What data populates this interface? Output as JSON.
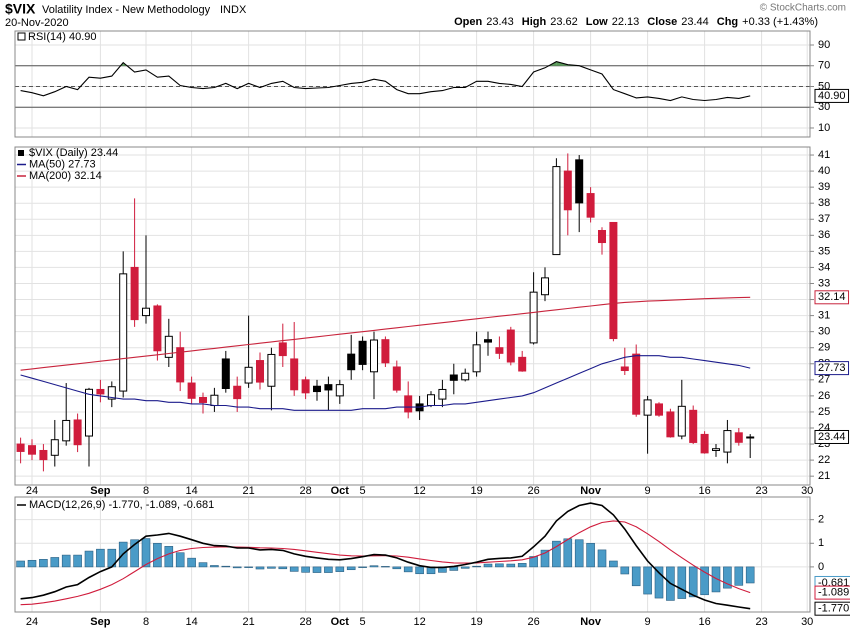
{
  "header": {
    "symbol": "$VIX",
    "name": "Volatility Index - New Methodology",
    "exchange": "INDX",
    "date": "20-Nov-2020",
    "quote": [
      {
        "label": "Open",
        "value": "23.43"
      },
      {
        "label": "High",
        "value": "23.62"
      },
      {
        "label": "Low",
        "value": "22.13"
      },
      {
        "label": "Close",
        "value": "23.44"
      },
      {
        "label": "Chg",
        "value": "+0.33 (+1.43%)"
      }
    ],
    "copyright": "© StockCharts.com"
  },
  "chart_data": [
    {
      "type": "line",
      "ylim": [
        1.3,
        103.5
      ],
      "yticks": [
        10,
        30,
        50,
        70,
        90
      ],
      "overbought": 70,
      "oversold": 30,
      "midline": 50,
      "fill_color": "#5a9a5a",
      "grid": true,
      "series": [
        {
          "name": "RSI(14) 40.90",
          "last_label": "40.90",
          "color": "#000000",
          "values": [
            46,
            44,
            41,
            45,
            50,
            47,
            59,
            58,
            60,
            73,
            64,
            66,
            59,
            60,
            51,
            49,
            48,
            49,
            53,
            48,
            53,
            49,
            53,
            55,
            49,
            48,
            48.5,
            49,
            51,
            53,
            54,
            57,
            55,
            47,
            43,
            43,
            45,
            46,
            49,
            49,
            55,
            55,
            53,
            52,
            50,
            64,
            68,
            74,
            71,
            70,
            66,
            62,
            47,
            43,
            39,
            40,
            38.5,
            36.5,
            40,
            37.5,
            36.5,
            37.5,
            39.5,
            38.5,
            40.9,
            null,
            null,
            null,
            null,
            null
          ]
        }
      ]
    },
    {
      "type": "candlestick",
      "ylim": [
        20.45,
        41.5
      ],
      "yticks": [
        21,
        22,
        23,
        24,
        25,
        26,
        27,
        28,
        29,
        30,
        31,
        32,
        33,
        34,
        35,
        36,
        37,
        38,
        39,
        40,
        41
      ],
      "grid": true,
      "categories": [
        null,
        "24",
        null,
        null,
        null,
        null,
        null,
        "Sep",
        null,
        null,
        null,
        "8",
        null,
        null,
        null,
        "14",
        null,
        null,
        null,
        null,
        "21",
        null,
        null,
        null,
        null,
        "28",
        null,
        null,
        "Oct",
        null,
        "5",
        null,
        null,
        null,
        null,
        "12",
        null,
        null,
        null,
        null,
        "19",
        null,
        null,
        null,
        null,
        "26",
        null,
        null,
        null,
        null,
        "Nov",
        null,
        null,
        null,
        null,
        "9",
        null,
        null,
        null,
        null,
        "16",
        null,
        null,
        null,
        null,
        "23",
        null,
        null,
        null,
        "30"
      ],
      "series": [
        {
          "name": "$VIX (Daily) 23.44",
          "last_label": "23.44",
          "up_color": "#000000",
          "down_color": "#d01c3c",
          "open": [
            23.0,
            22.9,
            22.6,
            22.3,
            23.2,
            24.5,
            23.5,
            26.4,
            25.8,
            26.3,
            34.0,
            31.0,
            31.6,
            28.4,
            29.0,
            26.8,
            25.9,
            25.4,
            28.3,
            26.6,
            26.8,
            28.2,
            26.6,
            29.3,
            28.3,
            27.0,
            26.6,
            26.7,
            26.0,
            28.6,
            29.4,
            27.5,
            29.5,
            27.8,
            26.0,
            25.5,
            25.4,
            25.8,
            27.3,
            27.0,
            27.5,
            29.5,
            29.0,
            30.1,
            28.4,
            29.3,
            32.3,
            34.8,
            40.0,
            40.7,
            38.6,
            36.3,
            36.8,
            27.8,
            28.6,
            24.8,
            25.5,
            25.0,
            23.5,
            25.1,
            23.6,
            22.6,
            22.5,
            23.7,
            23.43,
            null,
            null,
            null,
            null,
            null
          ],
          "high": [
            23.4,
            23.3,
            23.0,
            24.5,
            26.8,
            24.9,
            26.5,
            27.0,
            26.9,
            35.0,
            38.3,
            36.0,
            31.7,
            30.8,
            30.0,
            27.2,
            26.2,
            26.5,
            28.8,
            27.2,
            31.0,
            28.7,
            29.0,
            30.5,
            30.6,
            27.2,
            27.0,
            27.2,
            27.0,
            29.8,
            29.7,
            30.0,
            29.7,
            28.2,
            26.9,
            26.0,
            26.3,
            27.0,
            28.0,
            27.7,
            30.0,
            30.0,
            29.7,
            30.3,
            28.8,
            33.7,
            34.0,
            40.8,
            41.1,
            41.0,
            39.0,
            36.5,
            36.8,
            29.0,
            29.2,
            26.0,
            25.6,
            25.2,
            27.0,
            25.4,
            23.8,
            23.0,
            24.5,
            24.0,
            23.62,
            null,
            null,
            null,
            null,
            null
          ],
          "low": [
            21.8,
            22.0,
            21.3,
            21.6,
            22.9,
            22.5,
            21.6,
            25.6,
            25.3,
            25.9,
            30.3,
            30.5,
            28.2,
            27.8,
            26.3,
            25.5,
            24.9,
            25.0,
            26.2,
            25.0,
            26.5,
            26.4,
            25.1,
            27.8,
            26.0,
            25.8,
            25.7,
            25.1,
            25.5,
            27.0,
            27.6,
            25.8,
            27.8,
            26.2,
            24.6,
            24.5,
            25.3,
            25.3,
            26.1,
            26.9,
            27.2,
            28.5,
            28.3,
            27.9,
            27.5,
            29.2,
            31.9,
            34.8,
            36.0,
            36.2,
            36.8,
            34.8,
            29.4,
            27.3,
            24.7,
            22.4,
            24.7,
            23.4,
            23.3,
            23.0,
            22.4,
            22.2,
            21.8,
            22.9,
            22.13,
            null,
            null,
            null,
            null,
            null
          ],
          "close": [
            22.54,
            22.37,
            22.03,
            23.27,
            24.47,
            22.96,
            26.41,
            26.12,
            26.57,
            33.6,
            30.75,
            31.46,
            28.81,
            29.71,
            26.87,
            25.85,
            25.59,
            26.04,
            26.46,
            25.83,
            27.78,
            26.86,
            28.58,
            28.51,
            26.38,
            26.19,
            26.27,
            26.37,
            26.7,
            27.63,
            27.96,
            29.48,
            28.06,
            26.36,
            25.0,
            25.07,
            26.07,
            26.4,
            26.97,
            27.41,
            29.18,
            29.35,
            28.65,
            28.11,
            27.55,
            32.46,
            33.35,
            40.28,
            37.59,
            38.02,
            37.13,
            35.55,
            29.57,
            27.58,
            24.86,
            25.75,
            24.8,
            23.45,
            25.35,
            23.1,
            22.45,
            22.71,
            23.84,
            23.11,
            23.44,
            null,
            null,
            null,
            null,
            null
          ]
        },
        {
          "name": "MA(50) 27.73",
          "last_label": "27.73",
          "color": "#1c1c8c",
          "values": [
            27.3,
            27.1,
            26.9,
            26.7,
            26.5,
            26.3,
            26.1,
            26.0,
            25.9,
            25.8,
            25.8,
            25.7,
            25.7,
            25.6,
            25.6,
            25.5,
            25.5,
            25.4,
            25.4,
            25.3,
            25.3,
            25.2,
            25.2,
            25.2,
            25.1,
            25.1,
            25.1,
            25.1,
            25.1,
            25.1,
            25.2,
            25.2,
            25.2,
            25.3,
            25.3,
            25.3,
            25.4,
            25.4,
            25.5,
            25.5,
            25.6,
            25.7,
            25.8,
            25.9,
            26.0,
            26.2,
            26.5,
            26.8,
            27.1,
            27.4,
            27.7,
            28.0,
            28.2,
            28.4,
            28.5,
            28.5,
            28.5,
            28.4,
            28.4,
            28.3,
            28.2,
            28.1,
            28.0,
            27.9,
            27.73,
            null,
            null,
            null,
            null,
            null
          ]
        },
        {
          "name": "MA(200) 32.14",
          "last_label": "32.14",
          "color": "#c8243c",
          "values": [
            27.6,
            27.68,
            27.76,
            27.84,
            27.92,
            28.0,
            28.08,
            28.16,
            28.24,
            28.32,
            28.4,
            28.48,
            28.56,
            28.64,
            28.72,
            28.8,
            28.88,
            28.96,
            29.04,
            29.12,
            29.2,
            29.28,
            29.36,
            29.44,
            29.52,
            29.6,
            29.68,
            29.76,
            29.84,
            29.92,
            30.0,
            30.08,
            30.16,
            30.24,
            30.32,
            30.4,
            30.48,
            30.56,
            30.64,
            30.72,
            30.8,
            30.88,
            30.96,
            31.04,
            31.12,
            31.2,
            31.28,
            31.36,
            31.44,
            31.52,
            31.6,
            31.68,
            31.76,
            31.82,
            31.86,
            31.9,
            31.93,
            31.96,
            31.99,
            32.02,
            32.05,
            32.08,
            32.1,
            32.12,
            32.14,
            null,
            null,
            null,
            null,
            null
          ]
        }
      ]
    },
    {
      "type": "macd",
      "legend": "MACD(12,26,9) -1.770, -1.089, -0.681",
      "ylim": [
        -1.91,
        2.96
      ],
      "yticks": [
        0,
        1,
        2
      ],
      "grid": true,
      "series": [
        {
          "kind": "histogram",
          "last_label": "-0.681",
          "color": "#4a9bc7",
          "values": [
            0.25,
            0.28,
            0.32,
            0.4,
            0.5,
            0.5,
            0.67,
            0.75,
            0.75,
            1.05,
            1.15,
            1.2,
            1.0,
            0.87,
            0.6,
            0.37,
            0.18,
            0.06,
            0.03,
            -0.04,
            -0.03,
            -0.09,
            -0.06,
            -0.08,
            -0.19,
            -0.23,
            -0.24,
            -0.24,
            -0.2,
            -0.12,
            -0.03,
            0.05,
            0.02,
            -0.08,
            -0.21,
            -0.29,
            -0.29,
            -0.23,
            -0.15,
            -0.06,
            0.03,
            0.12,
            0.13,
            0.12,
            0.15,
            0.44,
            0.71,
            1.09,
            1.19,
            1.15,
            1.0,
            0.72,
            0.25,
            -0.3,
            -0.8,
            -1.15,
            -1.32,
            -1.42,
            -1.34,
            -1.27,
            -1.18,
            -1.06,
            -0.9,
            -0.78,
            -0.681,
            null,
            null,
            null,
            null,
            null
          ]
        },
        {
          "kind": "line",
          "last_label": "-1.089",
          "color": "#d01c3c",
          "values": [
            -1.6,
            -1.58,
            -1.52,
            -1.45,
            -1.35,
            -1.25,
            -1.12,
            -0.95,
            -0.75,
            -0.5,
            -0.2,
            0.1,
            0.35,
            0.55,
            0.7,
            0.78,
            0.82,
            0.84,
            0.85,
            0.84,
            0.83,
            0.81,
            0.8,
            0.78,
            0.74,
            0.68,
            0.62,
            0.56,
            0.5,
            0.47,
            0.46,
            0.47,
            0.48,
            0.46,
            0.41,
            0.34,
            0.27,
            0.21,
            0.17,
            0.16,
            0.17,
            0.2,
            0.23,
            0.26,
            0.3,
            0.41,
            0.59,
            0.86,
            1.16,
            1.45,
            1.7,
            1.88,
            1.95,
            1.9,
            1.7,
            1.4,
            1.07,
            0.72,
            0.39,
            0.07,
            -0.22,
            -0.49,
            -0.72,
            -0.92,
            -1.089,
            null,
            null,
            null,
            null,
            null
          ]
        },
        {
          "kind": "line",
          "last_label": "-1.770",
          "color": "#000000",
          "values": [
            -1.35,
            -1.3,
            -1.2,
            -1.05,
            -0.85,
            -0.75,
            -0.45,
            -0.2,
            0,
            0.55,
            0.95,
            1.3,
            1.35,
            1.42,
            1.3,
            1.15,
            1.0,
            0.9,
            0.88,
            0.8,
            0.8,
            0.72,
            0.74,
            0.7,
            0.55,
            0.45,
            0.38,
            0.32,
            0.3,
            0.35,
            0.43,
            0.52,
            0.5,
            0.38,
            0.2,
            0.05,
            -0.02,
            -0.02,
            0.02,
            0.1,
            0.2,
            0.32,
            0.36,
            0.38,
            0.45,
            0.85,
            1.3,
            1.95,
            2.35,
            2.6,
            2.7,
            2.6,
            2.2,
            1.6,
            0.9,
            0.25,
            -0.25,
            -0.7,
            -0.95,
            -1.2,
            -1.4,
            -1.55,
            -1.62,
            -1.7,
            -1.77,
            null,
            null,
            null,
            null,
            null
          ]
        }
      ]
    }
  ]
}
